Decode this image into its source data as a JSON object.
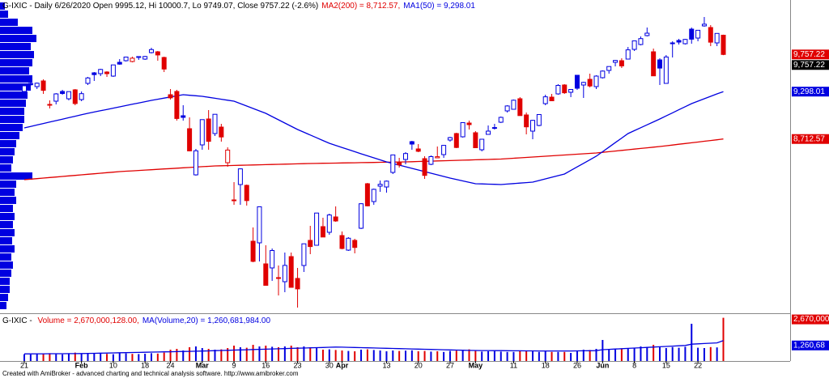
{
  "chart_data": [
    {
      "type": "candlestick",
      "title_parts": [
        {
          "text": "G-IXIC - Daily 6/26/2020 Open 9995.12, Hi 10000.7, Lo 9749.07, Close 9757.22 (-2.6%)",
          "color": "#000000"
        },
        {
          "text": "MA2(200) = 8,712.57,",
          "color": "#e00000"
        },
        {
          "text": "MA1(50) = 9,298.01",
          "color": "#0000e0"
        }
      ],
      "categories": [
        "21",
        null,
        null,
        null,
        null,
        null,
        null,
        null,
        null,
        "Feb",
        null,
        null,
        null,
        null,
        "10",
        null,
        null,
        null,
        null,
        "18",
        null,
        null,
        null,
        "24",
        null,
        null,
        null,
        null,
        "Mar",
        null,
        null,
        null,
        null,
        "9",
        null,
        null,
        null,
        null,
        "16",
        null,
        null,
        null,
        null,
        "23",
        null,
        null,
        null,
        null,
        "30",
        null,
        "Apr",
        null,
        null,
        null,
        null,
        null,
        null,
        "13",
        null,
        null,
        null,
        null,
        "20",
        null,
        null,
        null,
        null,
        "27",
        null,
        null,
        null,
        "May",
        null,
        null,
        null,
        null,
        null,
        "11",
        null,
        null,
        null,
        null,
        "18",
        null,
        null,
        null,
        null,
        "26",
        null,
        null,
        null,
        "Jun",
        null,
        null,
        null,
        null,
        "8",
        null,
        null,
        null,
        null,
        "15",
        null,
        null,
        null,
        null,
        "22",
        null,
        null,
        null,
        null
      ],
      "open": [
        9300,
        9400,
        9360,
        9430,
        9140,
        9180,
        9300,
        9210,
        9320,
        9200,
        9400,
        9530,
        9520,
        9540,
        9490,
        9660,
        9680,
        9670,
        9720,
        9700,
        9780,
        9790,
        9720,
        9260,
        9300,
        9000,
        8840,
        8270,
        8640,
        8960,
        8780,
        8860,
        8420,
        7960,
        8150,
        8140,
        7450,
        7430,
        7170,
        7120,
        7000,
        6950,
        7260,
        6990,
        7150,
        7460,
        7400,
        7630,
        7560,
        7750,
        7520,
        7340,
        7460,
        7610,
        8160,
        7940,
        8130,
        8120,
        8300,
        8420,
        8460,
        8680,
        8590,
        8470,
        8400,
        8480,
        8520,
        8700,
        8780,
        8740,
        8910,
        8790,
        8580,
        8770,
        8850,
        8920,
        9060,
        9080,
        9210,
        9010,
        8810,
        8880,
        9150,
        9230,
        9270,
        9380,
        9290,
        9500,
        9380,
        9450,
        9360,
        9470,
        9560,
        9660,
        9680,
        9700,
        9820,
        9880,
        9990,
        9790,
        9690,
        9400,
        9900,
        9930,
        9890,
        10070,
        9960,
        10110,
        10090,
        9900,
        9995.12
      ],
      "high": [
        9380,
        9430,
        9410,
        9450,
        9190,
        9280,
        9320,
        9300,
        9330,
        9300,
        9480,
        9540,
        9580,
        9550,
        9630,
        9700,
        9730,
        9730,
        9735,
        9740,
        9840,
        9800,
        9730,
        9330,
        9320,
        9130,
        8980,
        8590,
        8953,
        9070,
        9020,
        8900,
        8610,
        8180,
        8350,
        8150,
        7620,
        7880,
        7400,
        7360,
        7150,
        7310,
        7310,
        7120,
        7420,
        7640,
        7800,
        7740,
        7790,
        7880,
        7570,
        7500,
        7480,
        7920,
        8170,
        8100,
        8200,
        8200,
        8520,
        8480,
        8550,
        8690,
        8650,
        8500,
        8510,
        8620,
        8640,
        8740,
        8790,
        8920,
        8940,
        8810,
        8710,
        8880,
        8900,
        8990,
        9130,
        9200,
        9230,
        9040,
        8950,
        9020,
        9260,
        9270,
        9390,
        9390,
        9330,
        9500,
        9420,
        9520,
        9500,
        9560,
        9610,
        9690,
        9710,
        9850,
        9930,
        9980,
        10090,
        9830,
        9710,
        9750,
        9920,
        9950,
        9950,
        10090,
        10060,
        10220,
        10120,
        10020,
        10000.7
      ],
      "low": [
        9290,
        9370,
        9330,
        9270,
        9090,
        9140,
        9260,
        9190,
        9130,
        9180,
        9380,
        9430,
        9490,
        9480,
        9480,
        9630,
        9670,
        9660,
        9690,
        9690,
        9770,
        9680,
        9540,
        9200,
        8940,
        8940,
        8560,
        8260,
        8580,
        8580,
        8750,
        8680,
        8370,
        7900,
        7900,
        7890,
        7190,
        7200,
        6900,
        6960,
        6780,
        6820,
        6880,
        6630,
        7070,
        7290,
        7400,
        7500,
        7530,
        7690,
        7350,
        7330,
        7300,
        7600,
        7880,
        7900,
        8060,
        8050,
        8280,
        8360,
        8400,
        8580,
        8550,
        8220,
        8390,
        8480,
        8480,
        8680,
        8600,
        8730,
        8830,
        8600,
        8560,
        8770,
        8830,
        8910,
        9040,
        9080,
        9000,
        8770,
        8710,
        8870,
        9130,
        9180,
        9260,
        9270,
        9230,
        9320,
        9220,
        9350,
        9330,
        9460,
        9520,
        9610,
        9590,
        9700,
        9800,
        9870,
        9980,
        9490,
        9380,
        9400,
        9720,
        9880,
        9880,
        9890,
        9920,
        10100,
        9860,
        9860,
        9749.07
      ],
      "close": [
        9370,
        9383,
        9402,
        9314,
        9139,
        9270,
        9275,
        9298,
        9151,
        9273,
        9467,
        9508,
        9572,
        9520,
        9628,
        9638,
        9725,
        9711,
        9731,
        9732,
        9817,
        9751,
        9577,
        9221,
        8966,
        8980,
        8566,
        8567,
        8952,
        8684,
        9018,
        8738,
        8576,
        7950,
        8344,
        7952,
        7201,
        7875,
        6905,
        7335,
        6990,
        7151,
        6880,
        6861,
        7418,
        7384,
        7798,
        7502,
        7774,
        7700,
        7360,
        7487,
        7373,
        7913,
        7887,
        8091,
        8153,
        8192,
        8516,
        8393,
        8533,
        8650,
        8561,
        8263,
        8495,
        8494,
        8634,
        8730,
        8608,
        8915,
        8890,
        8605,
        8710,
        8810,
        8854,
        8980,
        9121,
        9192,
        9002,
        8863,
        8943,
        9015,
        9234,
        9185,
        9375,
        9284,
        9325,
        9340,
        9412,
        9368,
        9490,
        9552,
        9608,
        9683,
        9616,
        9814,
        9925,
        9953,
        10020,
        9493,
        9589,
        9726,
        9895,
        9910,
        9943,
        9946,
        10056,
        10131,
        9909,
        10017,
        9757.22
      ],
      "up_color": "#0000e0",
      "down_color": "#e00000",
      "series": [
        {
          "color": "#e00000",
          "values": [
            8210,
            8217,
            8223,
            8230,
            8237,
            8243,
            8250,
            8257,
            8263,
            8270,
            8277,
            8283,
            8290,
            8297,
            8303,
            8310,
            8315,
            8319,
            8324,
            8329,
            8333,
            8338,
            8343,
            8347,
            8352,
            8357,
            8361,
            8366,
            8371,
            8375,
            8380,
            8382,
            8384,
            8386,
            8388,
            8390,
            8392,
            8394,
            8396,
            8398,
            8400,
            8402,
            8404,
            8406,
            8408,
            8410,
            8411,
            8413,
            8414,
            8415,
            8417,
            8418,
            8419,
            8421,
            8422,
            8423,
            8425,
            8426,
            8427,
            8429,
            8430,
            8432,
            8435,
            8437,
            8439,
            8442,
            8444,
            8446,
            8449,
            8451,
            8453,
            8456,
            8458,
            8460,
            8463,
            8465,
            8470,
            8475,
            8480,
            8485,
            8490,
            8495,
            8500,
            8505,
            8510,
            8515,
            8520,
            8525,
            8530,
            8535,
            8540,
            8548,
            8556,
            8564,
            8572,
            8580,
            8588,
            8596,
            8604,
            8612,
            8620,
            8629,
            8638,
            8648,
            8657,
            8666,
            8675,
            8685,
            8694,
            8703,
            8712.57
          ]
        },
        {
          "color": "#0000e0",
          "values": [
            8850,
            8868,
            8886,
            8904,
            8922,
            8940,
            8958,
            8976,
            8994,
            9012,
            9030,
            9046,
            9062,
            9078,
            9094,
            9110,
            9126,
            9142,
            9158,
            9174,
            9190,
            9204,
            9218,
            9232,
            9246,
            9260,
            9253,
            9247,
            9240,
            9228,
            9216,
            9204,
            9192,
            9180,
            9150,
            9120,
            9090,
            9060,
            9030,
            8990,
            8950,
            8910,
            8870,
            8830,
            8796,
            8762,
            8728,
            8694,
            8660,
            8634,
            8608,
            8582,
            8556,
            8530,
            8505,
            8480,
            8455,
            8430,
            8410,
            8390,
            8370,
            8350,
            8330,
            8310,
            8290,
            8270,
            8250,
            8230,
            8212,
            8195,
            8177,
            8160,
            8158,
            8155,
            8153,
            8150,
            8156,
            8162,
            8168,
            8174,
            8180,
            8200,
            8220,
            8240,
            8260,
            8280,
            8324,
            8368,
            8412,
            8456,
            8500,
            8556,
            8612,
            8668,
            8724,
            8780,
            8816,
            8852,
            8888,
            8924,
            8960,
            8998,
            9036,
            9074,
            9112,
            9150,
            9180,
            9210,
            9240,
            9270,
            9298.01
          ]
        }
      ],
      "ylim": [
        6580,
        10430
      ],
      "price_markers": [
        {
          "value": 9757.22,
          "label": "9,757.22",
          "color": "#e00000"
        },
        {
          "value": 9757.22,
          "label": "9,757.22",
          "color": "#000000"
        },
        {
          "value": 9298.01,
          "label": "9,298.01",
          "color": "#0000e0"
        },
        {
          "value": 8712.57,
          "label": "8,712.57",
          "color": "#e00000"
        }
      ],
      "volume_profile": {
        "color": "#0000e0",
        "bins": [
          6600,
          6700,
          6800,
          6900,
          7000,
          7100,
          7200,
          7300,
          7400,
          7500,
          7600,
          7700,
          7800,
          7900,
          8000,
          8100,
          8200,
          8300,
          8400,
          8500,
          8600,
          8700,
          8800,
          8900,
          9000,
          9100,
          9200,
          9300,
          9400,
          9500,
          9600,
          9700,
          9800,
          9900,
          10000,
          10100,
          10200,
          10300,
          10400
        ],
        "values": [
          8,
          10,
          12,
          12,
          14,
          16,
          14,
          18,
          15,
          18,
          16,
          18,
          16,
          20,
          18,
          20,
          40,
          14,
          16,
          18,
          20,
          24,
          28,
          30,
          30,
          32,
          34,
          38,
          40,
          36,
          40,
          42,
          38,
          45,
          40,
          22,
          10,
          6
        ]
      }
    },
    {
      "type": "volume",
      "title_parts": [
        {
          "text": "G-IXIC - ",
          "color": "#000000"
        },
        {
          "text": "Volume = 2,670,000,128.00,",
          "color": "#e00000"
        },
        {
          "text": "MA(Volume,20) = 1,260,681,984.00",
          "color": "#0000e0"
        }
      ],
      "values": [
        420000000,
        400000000,
        430000000,
        460000000,
        480000000,
        420000000,
        410000000,
        430000000,
        520000000,
        430000000,
        470000000,
        500000000,
        450000000,
        440000000,
        420000000,
        480000000,
        470000000,
        440000000,
        430000000,
        450000000,
        480000000,
        460000000,
        520000000,
        700000000,
        750000000,
        650000000,
        850000000,
        900000000,
        800000000,
        750000000,
        700000000,
        720000000,
        800000000,
        950000000,
        850000000,
        820000000,
        1000000000,
        900000000,
        950000000,
        880000000,
        850000000,
        900000000,
        950000000,
        850000000,
        900000000,
        820000000,
        800000000,
        700000000,
        720000000,
        680000000,
        650000000,
        620000000,
        600000000,
        700000000,
        720000000,
        680000000,
        650000000,
        600000000,
        650000000,
        620000000,
        640000000,
        660000000,
        600000000,
        620000000,
        580000000,
        600000000,
        560000000,
        620000000,
        640000000,
        700000000,
        720000000,
        620000000,
        580000000,
        600000000,
        620000000,
        580000000,
        560000000,
        560000000,
        600000000,
        640000000,
        600000000,
        560000000,
        620000000,
        560000000,
        560000000,
        560000000,
        500000000,
        620000000,
        700000000,
        680000000,
        750000000,
        1300000000,
        720000000,
        760000000,
        780000000,
        800000000,
        820000000,
        900000000,
        860000000,
        1000000000,
        900000000,
        800000000,
        860000000,
        820000000,
        880000000,
        2300000000,
        820000000,
        800000000,
        860000000,
        840000000,
        2670000128
      ],
      "series": [
        {
          "color": "#0000e0",
          "values": [
            440000000,
            442000000,
            444000000,
            446000000,
            448000000,
            450000000,
            452000000,
            454000000,
            456000000,
            460000000,
            468000000,
            476000000,
            484000000,
            492000000,
            500000000,
            508000000,
            516000000,
            524000000,
            532000000,
            540000000,
            548000000,
            556000000,
            564000000,
            572000000,
            580000000,
            588000000,
            596000000,
            604000000,
            615000000,
            627000000,
            638000000,
            650000000,
            662000000,
            673000000,
            685000000,
            697000000,
            708000000,
            720000000,
            732000000,
            743000000,
            755000000,
            767000000,
            778000000,
            790000000,
            802000000,
            813000000,
            825000000,
            837000000,
            848000000,
            860000000,
            855000000,
            845000000,
            835000000,
            825000000,
            815000000,
            805000000,
            795000000,
            785000000,
            775000000,
            765000000,
            755000000,
            745000000,
            735000000,
            725000000,
            715000000,
            705000000,
            695000000,
            685000000,
            675000000,
            665000000,
            655000000,
            650000000,
            647000000,
            644000000,
            641000000,
            638000000,
            635000000,
            632000000,
            629000000,
            626000000,
            623000000,
            620000000,
            620000000,
            620000000,
            620000000,
            620000000,
            620000000,
            625000000,
            630000000,
            635000000,
            640000000,
            700000000,
            720000000,
            740000000,
            760000000,
            780000000,
            800000000,
            820000000,
            840000000,
            860000000,
            880000000,
            900000000,
            920000000,
            940000000,
            960000000,
            1040000000,
            1060000000,
            1080000000,
            1100000000,
            1120000000,
            1260681984
          ]
        }
      ],
      "ylim": [
        0,
        2700000000
      ],
      "markers": [
        {
          "label": "2,670,000",
          "color": "#e00000"
        },
        {
          "label": "1,260,68",
          "color": "#0000e0"
        }
      ]
    }
  ],
  "footer": "Created with AmiBroker - advanced charting and technical analysis software. http://www.amibroker.com"
}
